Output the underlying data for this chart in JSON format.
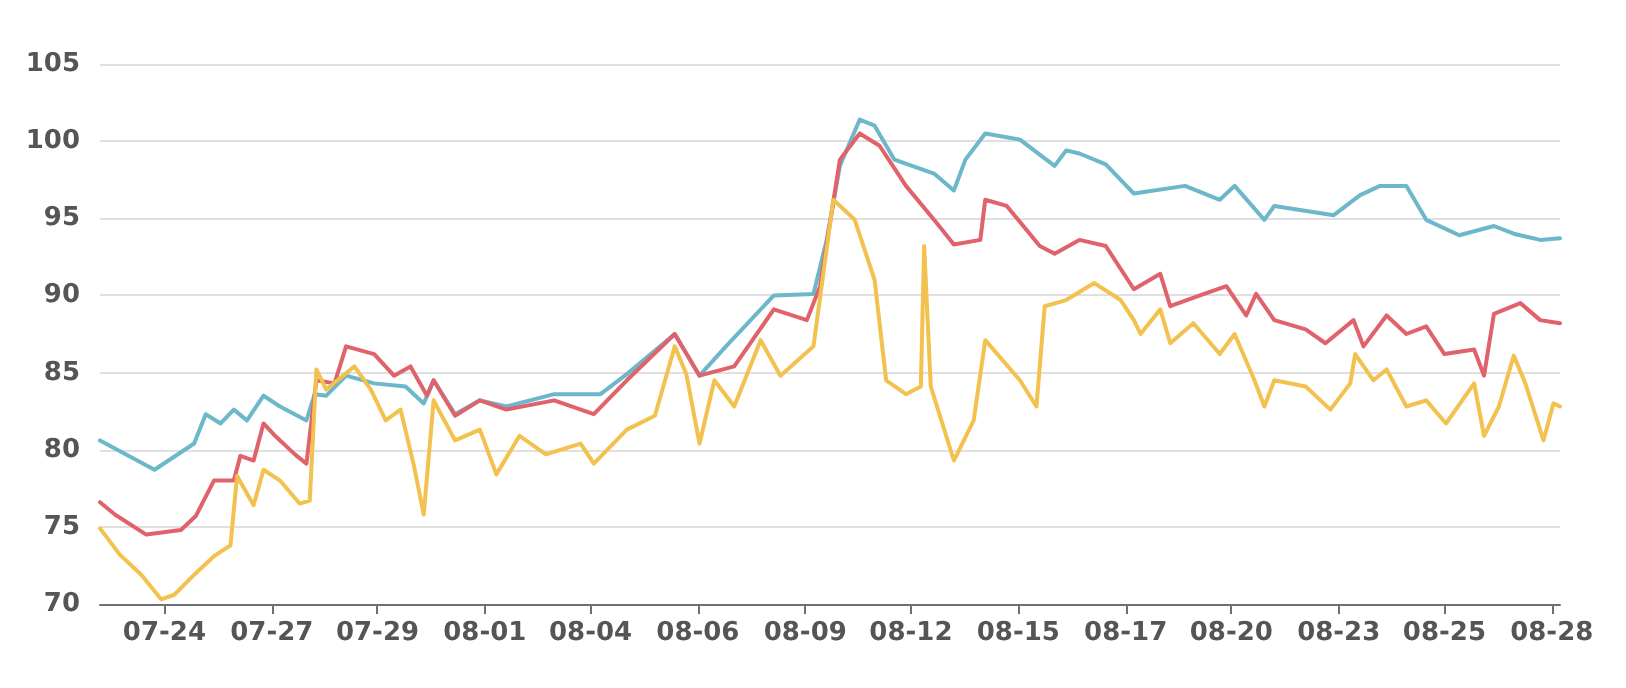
{
  "chart_data": {
    "type": "line",
    "xlim": [
      "--07-22T09:00",
      "--08-28T05:00"
    ],
    "ylim": [
      70,
      105
    ],
    "yticks": [
      70,
      75,
      80,
      85,
      90,
      95,
      100,
      105
    ],
    "xticks": [
      {
        "value": "--07-24T00:00",
        "label": "07-24"
      },
      {
        "value": "--07-26T17:00",
        "label": "07-27"
      },
      {
        "value": "--07-29T09:00",
        "label": "07-29"
      },
      {
        "value": "--08-01T02:00",
        "label": "08-01"
      },
      {
        "value": "--08-03T18:00",
        "label": "08-04"
      },
      {
        "value": "--08-06T11:00",
        "label": "08-06"
      },
      {
        "value": "--08-09T04:00",
        "label": "08-09"
      },
      {
        "value": "--08-11T20:00",
        "label": "08-12"
      },
      {
        "value": "--08-14T13:00",
        "label": "08-15"
      },
      {
        "value": "--08-17T06:00",
        "label": "08-17"
      },
      {
        "value": "--08-19T22:00",
        "label": "08-20"
      },
      {
        "value": "--08-22T15:00",
        "label": "08-23"
      },
      {
        "value": "--08-25T07:00",
        "label": "08-25"
      },
      {
        "value": "--08-28T00:00",
        "label": "08-28"
      }
    ],
    "grid": "y",
    "marker": "none",
    "line_style": "solid",
    "series": [
      {
        "color": "#6cb7ca",
        "x": [
          "--07-22T09:00",
          "--07-23T18:00",
          "--07-24T18:00",
          "--07-25T01:00",
          "--07-25T10:00",
          "--07-25T18:00",
          "--07-26T02:00",
          "--07-26T12:00",
          "--07-26T22:00",
          "--07-27T14:00",
          "--07-27T19:00",
          "--07-28T02:00",
          "--07-28T14:00",
          "--07-29T07:00",
          "--07-30T02:00",
          "--07-30T13:00",
          "--07-30T19:00",
          "--07-31T08:00",
          "--07-31T23:00",
          "--08-01T15:00",
          "--08-02T20:00",
          "--08-04T00:00",
          "--08-04T16:00",
          "--08-05T21:00",
          "--08-06T12:00",
          "--08-07T04:00",
          "--08-08T09:00",
          "--08-09T09:00",
          "--08-09T17:00",
          "--08-10T01:00",
          "--08-10T13:00",
          "--08-10T22:00",
          "--08-11T10:00",
          "--08-12T10:00",
          "--08-12T22:00",
          "--08-13T05:00",
          "--08-13T17:00",
          "--08-14T14:00",
          "--08-15T11:00",
          "--08-15T18:00",
          "--08-16T02:00",
          "--08-16T18:00",
          "--08-17T11:00",
          "--08-18T18:00",
          "--08-19T15:00",
          "--08-20T00:00",
          "--08-20T18:00",
          "--08-21T00:00",
          "--08-22T12:00",
          "--08-23T04:00",
          "--08-23T16:00",
          "--08-24T08:00",
          "--08-24T20:00",
          "--08-25T16:00",
          "--08-26T13:00",
          "--08-27T01:00",
          "--08-27T17:00",
          "--08-28T05:00"
        ],
        "values": [
          80.6,
          78.7,
          80.4,
          82.3,
          81.7,
          82.6,
          81.9,
          83.5,
          82.8,
          81.9,
          83.6,
          83.5,
          84.8,
          84.3,
          84.1,
          83.0,
          84.5,
          82.3,
          83.2,
          82.8,
          83.6,
          83.6,
          84.9,
          87.5,
          84.8,
          86.7,
          90.0,
          90.1,
          93.6,
          98.4,
          101.4,
          101.0,
          98.8,
          97.9,
          96.8,
          98.8,
          100.5,
          100.1,
          98.4,
          99.4,
          99.2,
          98.5,
          96.6,
          97.1,
          96.2,
          97.1,
          94.9,
          95.8,
          95.2,
          96.5,
          97.1,
          97.1,
          94.9,
          93.9,
          94.5,
          94.0,
          93.6,
          93.7
        ]
      },
      {
        "color": "#e0626b",
        "x": [
          "--07-22T09:00",
          "--07-22T18:00",
          "--07-23T13:00",
          "--07-24T10:00",
          "--07-24T19:00",
          "--07-25T06:00",
          "--07-25T18:00",
          "--07-25T22:00",
          "--07-26T06:00",
          "--07-26T12:00",
          "--07-26T19:00",
          "--07-27T07:00",
          "--07-27T14:00",
          "--07-27T20:00",
          "--07-28T07:00",
          "--07-28T14:00",
          "--07-29T07:00",
          "--07-29T19:00",
          "--07-30T05:00",
          "--07-30T15:00",
          "--07-30T19:00",
          "--07-31T08:00",
          "--07-31T23:00",
          "--08-01T15:00",
          "--08-02T20:00",
          "--08-03T20:00",
          "--08-04T16:00",
          "--08-05T21:00",
          "--08-06T12:00",
          "--08-07T09:00",
          "--08-08T09:00",
          "--08-09T05:00",
          "--08-09T13:00",
          "--08-10T01:00",
          "--08-10T13:00",
          "--08-11T01:00",
          "--08-11T17:00",
          "--08-12T10:00",
          "--08-12T22:00",
          "--08-13T14:00",
          "--08-13T17:00",
          "--08-14T06:00",
          "--08-15T02:00",
          "--08-15T11:00",
          "--08-16T02:00",
          "--08-16T18:00",
          "--08-17T11:00",
          "--08-18T03:00",
          "--08-18T09:00",
          "--08-19T03:00",
          "--08-19T19:00",
          "--08-20T07:00",
          "--08-20T13:00",
          "--08-21T00:00",
          "--08-21T19:00",
          "--08-22T07:00",
          "--08-23T00:00",
          "--08-23T06:00",
          "--08-23T20:00",
          "--08-24T08:00",
          "--08-24T20:00",
          "--08-25T07:00",
          "--08-26T01:00",
          "--08-26T07:00",
          "--08-26T13:00",
          "--08-27T05:00",
          "--08-27T17:00",
          "--08-28T05:00"
        ],
        "values": [
          76.6,
          75.8,
          74.5,
          74.8,
          75.7,
          78.0,
          78.0,
          79.6,
          79.3,
          81.7,
          80.9,
          79.7,
          79.1,
          84.5,
          84.3,
          86.7,
          86.2,
          84.8,
          85.4,
          83.5,
          84.5,
          82.2,
          83.2,
          82.6,
          83.2,
          82.3,
          84.5,
          87.5,
          84.8,
          85.4,
          89.1,
          88.4,
          90.6,
          98.8,
          100.5,
          99.7,
          97.1,
          94.9,
          93.3,
          93.6,
          96.2,
          95.8,
          93.2,
          92.7,
          93.6,
          93.2,
          90.4,
          91.4,
          89.3,
          90.0,
          90.6,
          88.7,
          90.1,
          88.4,
          87.8,
          86.9,
          88.4,
          86.7,
          88.7,
          87.5,
          88.0,
          86.2,
          86.5,
          84.8,
          88.8,
          89.5,
          88.4,
          88.2
        ]
      },
      {
        "color": "#f2c14e",
        "x": [
          "--07-22T09:00",
          "--07-22T21:00",
          "--07-23T10:00",
          "--07-23T22:00",
          "--07-24T06:00",
          "--07-24T18:00",
          "--07-25T06:00",
          "--07-25T16:00",
          "--07-25T20:00",
          "--07-26T06:00",
          "--07-26T12:00",
          "--07-26T22:00",
          "--07-27T10:00",
          "--07-27T16:00",
          "--07-27T20:00",
          "--07-28T02:00",
          "--07-28T19:00",
          "--07-29T05:00",
          "--07-29T14:00",
          "--07-29T23:00",
          "--07-30T07:00",
          "--07-30T13:00",
          "--07-30T19:00",
          "--07-31T08:00",
          "--07-31T23:00",
          "--08-01T09:00",
          "--08-01T23:00",
          "--08-02T15:00",
          "--08-03T12:00",
          "--08-03T20:00",
          "--08-04T16:00",
          "--08-05T09:00",
          "--08-05T21:00",
          "--08-06T04:00",
          "--08-06T12:00",
          "--08-06T21:00",
          "--08-07T09:00",
          "--08-08T01:00",
          "--08-08T13:00",
          "--08-09T09:00",
          "--08-09T21:00",
          "--08-10T10:00",
          "--08-10T22:00",
          "--08-11T05:00",
          "--08-11T17:00",
          "--08-12T02:00",
          "--08-12T04:00",
          "--08-12T08:00",
          "--08-12T22:00",
          "--08-13T10:00",
          "--08-13T17:00",
          "--08-14T14:00",
          "--08-15T00:00",
          "--08-15T05:00",
          "--08-15T18:00",
          "--08-16T11:00",
          "--08-17T03:00",
          "--08-17T11:00",
          "--08-17T15:00",
          "--08-18T03:00",
          "--08-18T09:00",
          "--08-18T23:00",
          "--08-19T15:00",
          "--08-20T00:00",
          "--08-20T12:00",
          "--08-20T18:00",
          "--08-21T00:00",
          "--08-21T19:00",
          "--08-22T10:00",
          "--08-22T22:00",
          "--08-23T01:00",
          "--08-23T12:00",
          "--08-23T20:00",
          "--08-24T08:00",
          "--08-24T20:00",
          "--08-25T08:00",
          "--08-26T01:00",
          "--08-26T07:00",
          "--08-26T16:00",
          "--08-27T01:00",
          "--08-27T08:00",
          "--08-27T19:00",
          "--08-28T01:00",
          "--08-28T05:00"
        ],
        "values": [
          74.9,
          73.2,
          71.9,
          70.3,
          70.6,
          71.9,
          73.1,
          73.8,
          78.3,
          76.4,
          78.7,
          78.0,
          76.5,
          76.7,
          85.2,
          83.9,
          85.4,
          83.9,
          81.9,
          82.6,
          79.0,
          75.8,
          83.2,
          80.6,
          81.3,
          78.4,
          80.9,
          79.7,
          80.4,
          79.1,
          81.3,
          82.2,
          86.7,
          84.9,
          80.4,
          84.5,
          82.8,
          87.1,
          84.8,
          86.7,
          96.2,
          94.9,
          91.0,
          84.5,
          83.6,
          84.1,
          93.2,
          84.1,
          79.3,
          81.9,
          87.1,
          84.5,
          82.8,
          89.3,
          89.7,
          90.8,
          89.7,
          88.4,
          87.5,
          89.1,
          86.9,
          88.2,
          86.2,
          87.5,
          84.5,
          82.8,
          84.5,
          84.1,
          82.6,
          84.3,
          86.2,
          84.5,
          85.2,
          82.8,
          83.2,
          81.7,
          84.3,
          80.9,
          82.8,
          86.1,
          84.3,
          80.6,
          83.0,
          82.8
        ]
      }
    ]
  }
}
